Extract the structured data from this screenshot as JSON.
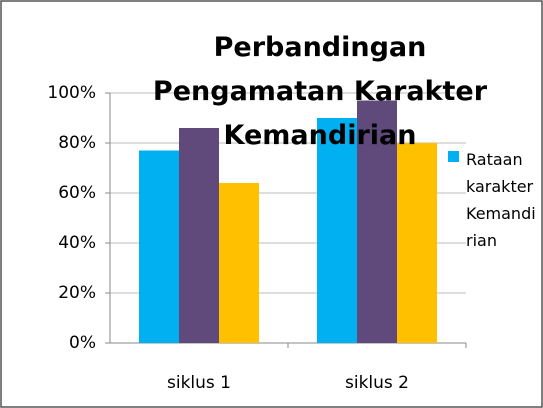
{
  "chart_data": {
    "type": "bar",
    "title": "Perbandingan Pengamatan Karakter Kemandirian",
    "categories": [
      "siklus 1",
      "siklus 2"
    ],
    "series": [
      {
        "name": "Rataan karakter Kemandirian",
        "color": "#00b0f0",
        "values": [
          77,
          90
        ]
      },
      {
        "name": null,
        "color": "#604a7b",
        "values": [
          86,
          97
        ]
      },
      {
        "name": null,
        "color": "#ffc000",
        "values": [
          64,
          80
        ]
      }
    ],
    "ylim": [
      0,
      100
    ],
    "yticks": [
      {
        "value": 0,
        "label": "0%"
      },
      {
        "value": 20,
        "label": "20%"
      },
      {
        "value": 40,
        "label": "40%"
      },
      {
        "value": 60,
        "label": "60%"
      },
      {
        "value": 80,
        "label": "80%"
      },
      {
        "value": 100,
        "label": "100%"
      }
    ],
    "grid": true,
    "legend": "right"
  }
}
